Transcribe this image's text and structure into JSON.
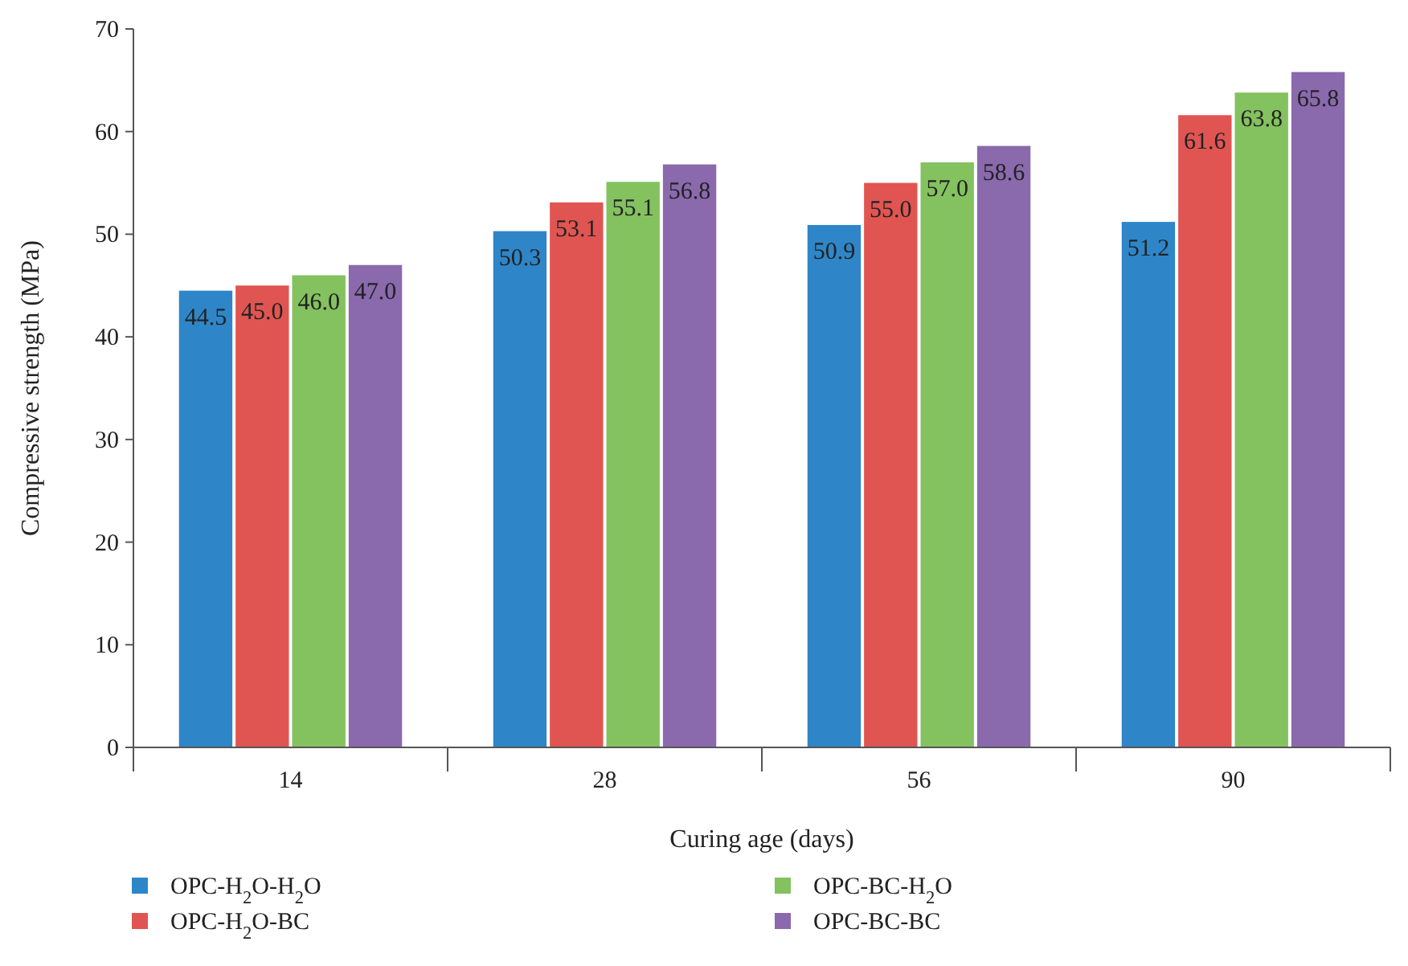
{
  "chart_data": {
    "type": "bar",
    "xlabel": "Curing age (days)",
    "ylabel": "Compressive strength (MPa)",
    "categories": [
      "14",
      "28",
      "56",
      "90"
    ],
    "series": [
      {
        "name": "OPC-H$_{2}$O-H$_{2}$O",
        "color": "#2e86c8",
        "values": [
          44.5,
          50.3,
          50.9,
          51.2
        ],
        "value_labels": [
          "44.5",
          "50.3",
          "50.9",
          "51.2"
        ]
      },
      {
        "name": "OPC-H$_{2}$O-BC",
        "color": "#e05552",
        "values": [
          45.0,
          53.1,
          55.0,
          61.6
        ],
        "value_labels": [
          "45.0",
          "53.1",
          "55.0",
          "61.6"
        ]
      },
      {
        "name": "OPC-BC-H$_{2}$O",
        "color": "#84c15f",
        "values": [
          46.0,
          55.1,
          57.0,
          63.8
        ],
        "value_labels": [
          "46.0",
          "55.1",
          "57.0",
          "63.8"
        ]
      },
      {
        "name": "OPC-BC-BC",
        "color": "#8a69ad",
        "values": [
          47.0,
          56.8,
          58.6,
          65.8
        ],
        "value_labels": [
          "47.0",
          "56.8",
          "58.6",
          "65.8"
        ]
      }
    ],
    "ylim": [
      0,
      70
    ],
    "yticks": [
      0,
      10,
      20,
      30,
      40,
      50,
      60,
      70
    ],
    "grid": false,
    "legend": "bottom"
  }
}
